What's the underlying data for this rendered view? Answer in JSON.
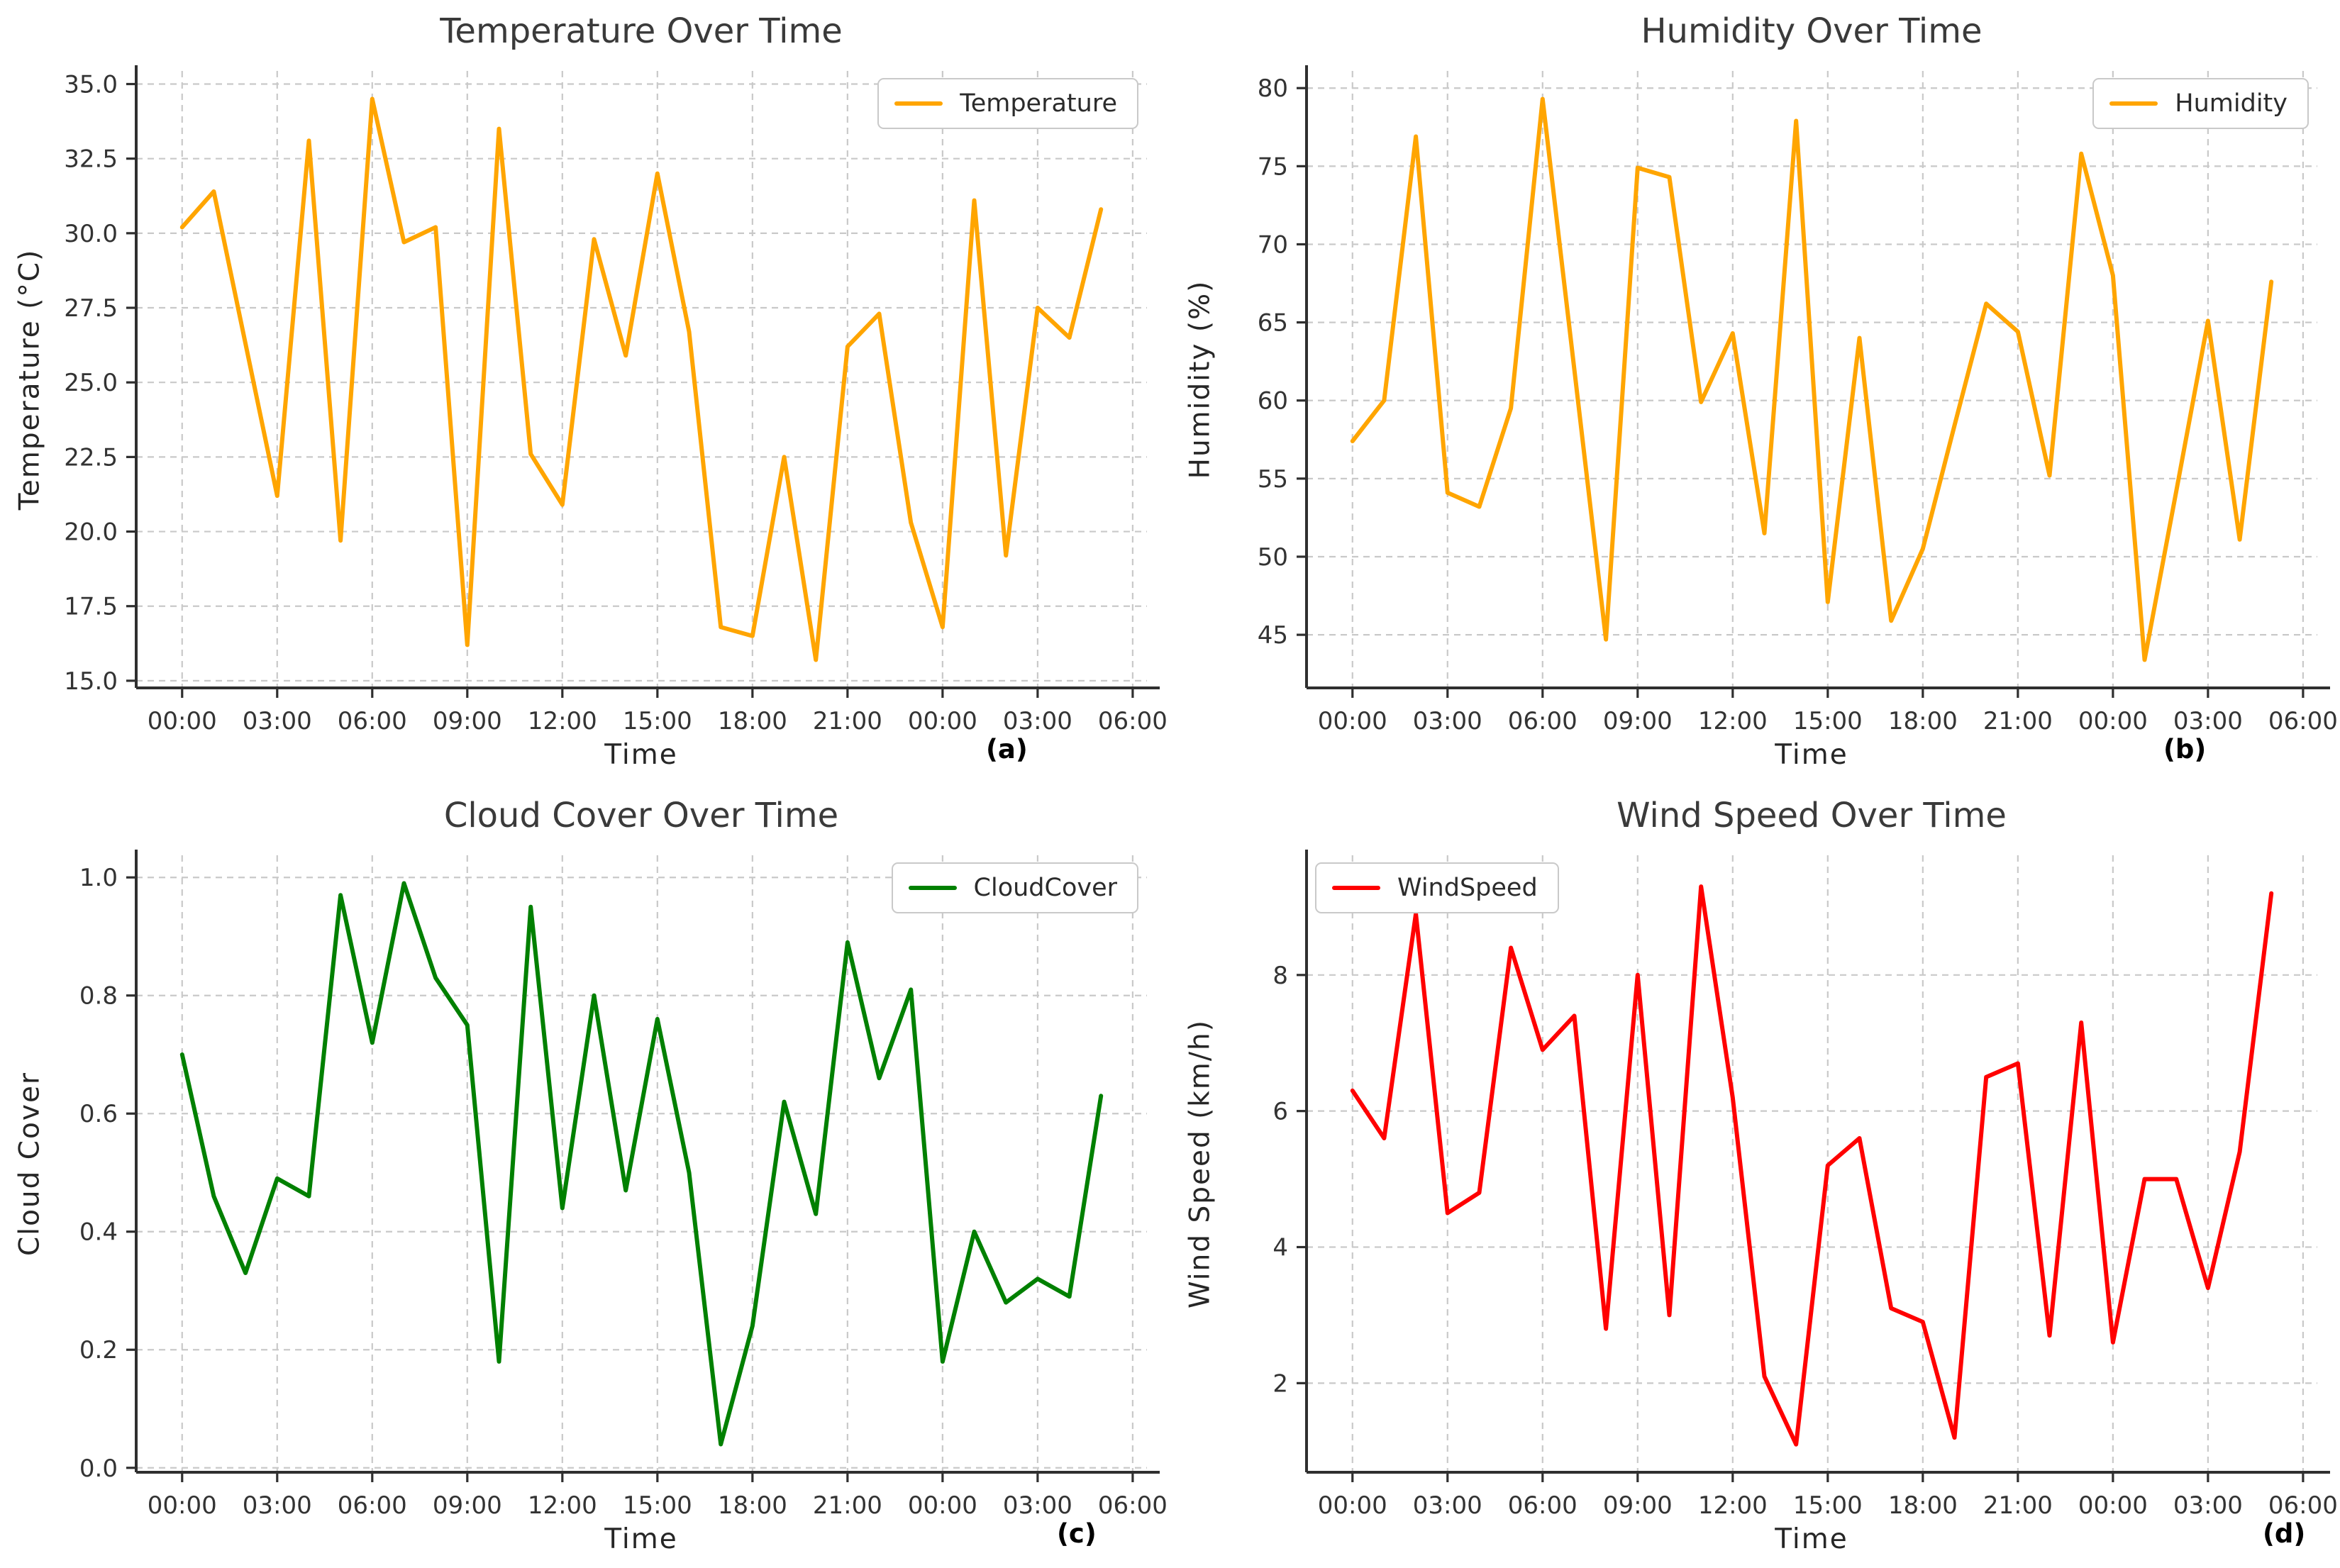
{
  "figure": {
    "background": "#ffffff",
    "grid_color": "#c9c9c9",
    "spine_color": "#2f2f2f",
    "tick_text_color": "#333333"
  },
  "x_axis": {
    "label": "Time",
    "hours": [
      0,
      1,
      2,
      3,
      4,
      5,
      6,
      7,
      8,
      9,
      10,
      11,
      12,
      13,
      14,
      15,
      16,
      17,
      18,
      19,
      20,
      21,
      22,
      23,
      24,
      25,
      26,
      27,
      28,
      29
    ],
    "tick_hours": [
      0,
      3,
      6,
      9,
      12,
      15,
      18,
      21,
      24,
      27,
      30
    ],
    "tick_labels": [
      "00:00",
      "03:00",
      "06:00",
      "09:00",
      "12:00",
      "15:00",
      "18:00",
      "21:00",
      "00:00",
      "03:00",
      "06:00"
    ],
    "xlim": [
      -1.45,
      30.45
    ]
  },
  "chart_data": [
    {
      "type": "line",
      "title": "Temperature Over Time",
      "ylabel": "Temperature (°C)",
      "xlabel": "Time",
      "legend_label": "Temperature",
      "legend_position": "top-right",
      "letter": "(a)",
      "color": "#FFA500",
      "ylim": [
        14.76,
        35.44
      ],
      "ytick_values": [
        15.0,
        17.5,
        20.0,
        22.5,
        25.0,
        27.5,
        30.0,
        32.5,
        35.0
      ],
      "ytick_labels": [
        "15.0",
        "17.5",
        "20.0",
        "22.5",
        "25.0",
        "27.5",
        "30.0",
        "32.5",
        "35.0"
      ],
      "values": [
        30.2,
        31.4,
        26.3,
        21.2,
        33.1,
        19.7,
        34.5,
        29.7,
        30.2,
        16.2,
        33.5,
        22.6,
        20.9,
        29.8,
        25.9,
        32.0,
        26.7,
        16.8,
        16.5,
        22.5,
        15.7,
        26.2,
        27.3,
        20.3,
        16.8,
        31.1,
        19.2,
        27.5,
        26.5,
        30.8
      ]
    },
    {
      "type": "line",
      "title": "Humidity Over Time",
      "ylabel": "Humidity (%)",
      "xlabel": "Time",
      "legend_label": "Humidity",
      "legend_position": "top-right",
      "letter": "(b)",
      "color": "#FFA500",
      "ylim": [
        41.6,
        81.1
      ],
      "ytick_values": [
        45,
        50,
        55,
        60,
        65,
        70,
        75,
        80
      ],
      "ytick_labels": [
        "45",
        "50",
        "55",
        "60",
        "65",
        "70",
        "75",
        "80"
      ],
      "values": [
        57.4,
        60.0,
        76.9,
        54.1,
        53.2,
        59.5,
        79.3,
        62.0,
        44.7,
        74.9,
        74.3,
        59.9,
        64.3,
        51.5,
        77.9,
        47.1,
        64.0,
        45.9,
        50.5,
        58.4,
        66.2,
        64.4,
        55.2,
        75.8,
        68.0,
        43.4,
        54.2,
        65.1,
        51.1,
        67.6
      ]
    },
    {
      "type": "line",
      "title": "Cloud Cover Over Time",
      "ylabel": "Cloud Cover",
      "xlabel": "Time",
      "legend_label": "CloudCover",
      "legend_position": "top-right",
      "letter": "(c)",
      "color": "#008000",
      "ylim": [
        -0.0075,
        1.0375
      ],
      "ytick_values": [
        0.0,
        0.2,
        0.4,
        0.6,
        0.8,
        1.0
      ],
      "ytick_labels": [
        "0.0",
        "0.2",
        "0.4",
        "0.6",
        "0.8",
        "1.0"
      ],
      "values": [
        0.7,
        0.46,
        0.33,
        0.49,
        0.46,
        0.97,
        0.72,
        0.99,
        0.83,
        0.75,
        0.18,
        0.95,
        0.44,
        0.8,
        0.47,
        0.76,
        0.5,
        0.04,
        0.24,
        0.62,
        0.43,
        0.89,
        0.66,
        0.81,
        0.18,
        0.4,
        0.28,
        0.32,
        0.29,
        0.63
      ]
    },
    {
      "type": "line",
      "title": "Wind Speed Over Time",
      "ylabel": "Wind Speed (km/h)",
      "xlabel": "Time",
      "legend_label": "WindSpeed",
      "legend_position": "top-left",
      "letter": "(d)",
      "color": "#FF0000",
      "ylim": [
        0.69,
        9.76
      ],
      "ytick_values": [
        2,
        4,
        6,
        8
      ],
      "ytick_labels": [
        "2",
        "4",
        "6",
        "8"
      ],
      "values": [
        6.3,
        5.6,
        8.9,
        4.5,
        4.8,
        8.4,
        6.9,
        7.4,
        2.8,
        8.0,
        3.0,
        9.3,
        6.2,
        2.1,
        1.1,
        5.2,
        5.6,
        3.1,
        2.9,
        1.2,
        6.5,
        6.7,
        2.7,
        7.3,
        2.6,
        5.0,
        5.0,
        3.4,
        5.4,
        9.2
      ]
    }
  ]
}
